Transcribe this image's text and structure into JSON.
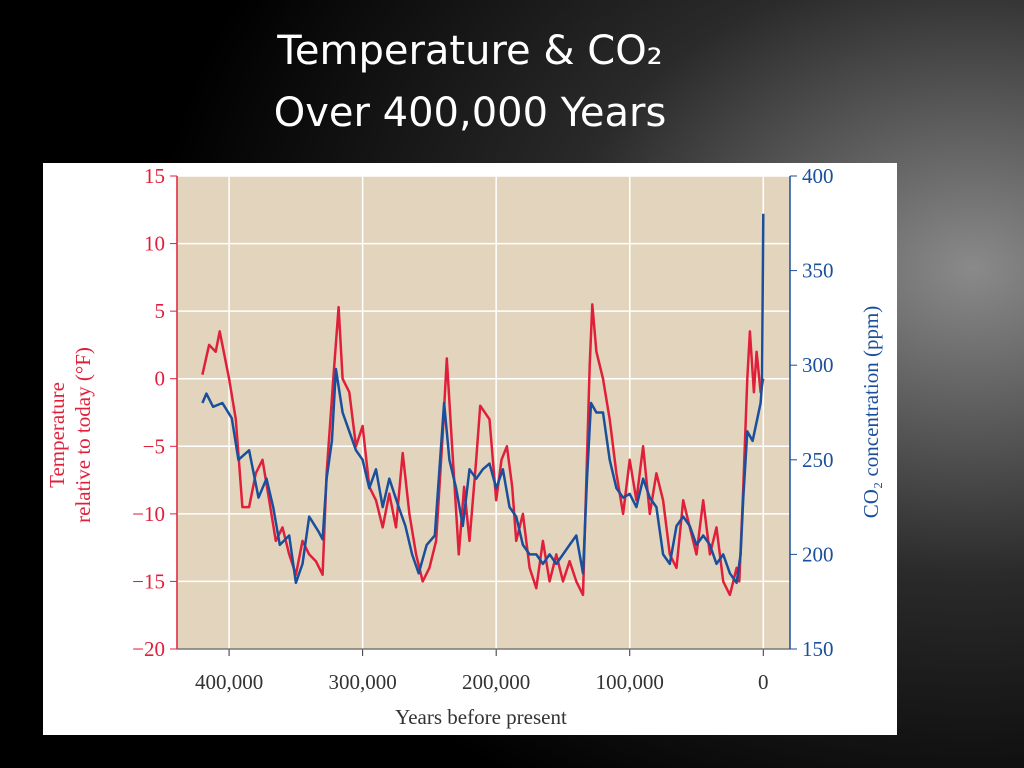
{
  "chart_data": {
    "type": "line",
    "title": [
      "Temperature & CO₂",
      "Over 400,000 Years"
    ],
    "xlabel": "Years before present",
    "ylabel": [
      "Temperature",
      "relative to today (°F)"
    ],
    "y2label": "CO₂ concentration (ppm)",
    "xlim": [
      439000,
      -20000
    ],
    "xticks": [
      {
        "value": 400000,
        "label": "400,000"
      },
      {
        "value": 300000,
        "label": "300,000"
      },
      {
        "value": 200000,
        "label": "200,000"
      },
      {
        "value": 100000,
        "label": "100,000"
      },
      0
    ],
    "ylim": [
      -20,
      15
    ],
    "yticks": [
      {
        "value": -20,
        "label": "−20"
      },
      {
        "value": -15,
        "label": "−15"
      },
      {
        "value": -10,
        "label": "−10"
      },
      {
        "value": -5,
        "label": "−5"
      },
      0,
      5,
      10,
      15
    ],
    "y2lim": [
      150,
      400
    ],
    "y2ticks": [
      150,
      200,
      250,
      300,
      350,
      400
    ],
    "grid": true,
    "series": [
      {
        "color": "#e0203a",
        "x": [
          420000,
          415000,
          410000,
          407000,
          400000,
          395000,
          390000,
          385000,
          380000,
          375000,
          370000,
          365000,
          360000,
          355000,
          350000,
          345000,
          340000,
          335000,
          330000,
          327000,
          322000,
          318000,
          315000,
          310000,
          305000,
          300000,
          295000,
          290000,
          285000,
          280000,
          275000,
          270000,
          265000,
          260000,
          255000,
          250000,
          245000,
          240000,
          237000,
          233000,
          228000,
          224000,
          220000,
          215000,
          212000,
          205000,
          200000,
          196000,
          192000,
          188000,
          185000,
          180000,
          175000,
          170000,
          165000,
          160000,
          155000,
          150000,
          145000,
          140000,
          135000,
          130000,
          128000,
          125000,
          120000,
          115000,
          110000,
          105000,
          100000,
          95000,
          90000,
          85000,
          80000,
          75000,
          70000,
          65000,
          60000,
          55000,
          50000,
          45000,
          40000,
          35000,
          30000,
          25000,
          20000,
          18000,
          15000,
          12000,
          10000,
          7000,
          5000,
          2000,
          0
        ],
        "values": [
          0.3,
          2.5,
          2,
          3.5,
          0,
          -3,
          -9.5,
          -9.5,
          -7,
          -6,
          -9,
          -12,
          -11,
          -13,
          -14.5,
          -12,
          -13,
          -13.5,
          -14.5,
          -7,
          0,
          5.3,
          0,
          -1,
          -5,
          -3.5,
          -8,
          -9,
          -11,
          -8.5,
          -11,
          -5.5,
          -10,
          -13,
          -15,
          -14,
          -12,
          -4,
          1.5,
          -5,
          -13,
          -8,
          -12,
          -6,
          -2,
          -3,
          -9,
          -6,
          -5,
          -8,
          -12,
          -10,
          -14,
          -15.5,
          -12,
          -15,
          -13,
          -15,
          -13.5,
          -15,
          -16,
          1,
          5.5,
          2,
          0,
          -3,
          -7,
          -10,
          -6,
          -9,
          -5,
          -10,
          -7,
          -9,
          -13,
          -14,
          -9,
          -11,
          -13,
          -9,
          -13,
          -11,
          -15,
          -16,
          -14,
          -15,
          -8,
          0,
          3.5,
          -1,
          2,
          -1,
          0
        ]
      },
      {
        "color": "#1a4f9c",
        "axis": "y2",
        "x": [
          420000,
          417000,
          412000,
          405000,
          398000,
          393000,
          385000,
          378000,
          372000,
          367000,
          362000,
          355000,
          350000,
          345000,
          340000,
          333000,
          330000,
          327000,
          323000,
          320000,
          315000,
          310000,
          305000,
          300000,
          295000,
          290000,
          285000,
          280000,
          273000,
          268000,
          263000,
          258000,
          252000,
          246000,
          242000,
          239000,
          235000,
          230000,
          225000,
          220000,
          215000,
          210000,
          205000,
          200000,
          195000,
          190000,
          185000,
          180000,
          175000,
          170000,
          165000,
          160000,
          155000,
          150000,
          145000,
          140000,
          135000,
          132000,
          129000,
          125000,
          120000,
          115000,
          110000,
          105000,
          100000,
          95000,
          90000,
          85000,
          80000,
          75000,
          70000,
          65000,
          60000,
          55000,
          50000,
          45000,
          40000,
          35000,
          30000,
          25000,
          20000,
          17000,
          15000,
          12000,
          8000,
          5000,
          2000,
          1000,
          0
        ],
        "values": [
          280,
          285,
          278,
          280,
          272,
          250,
          255,
          230,
          240,
          225,
          205,
          210,
          185,
          195,
          220,
          212,
          208,
          240,
          260,
          298,
          275,
          265,
          255,
          250,
          235,
          245,
          225,
          240,
          225,
          215,
          200,
          190,
          205,
          210,
          250,
          280,
          250,
          235,
          215,
          245,
          240,
          245,
          248,
          235,
          245,
          225,
          220,
          205,
          200,
          200,
          195,
          200,
          195,
          200,
          205,
          210,
          190,
          240,
          280,
          275,
          275,
          250,
          235,
          230,
          232,
          225,
          240,
          230,
          225,
          200,
          195,
          215,
          220,
          215,
          205,
          210,
          205,
          195,
          200,
          190,
          185,
          200,
          230,
          265,
          260,
          270,
          280,
          290,
          380
        ]
      }
    ]
  }
}
